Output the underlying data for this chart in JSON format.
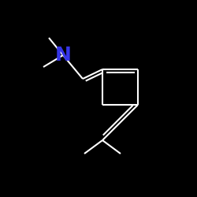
{
  "background_color": "#000000",
  "bond_color": "#ffffff",
  "N_color": "#3636e8",
  "N_label": "N",
  "N_fontsize": 18,
  "N_fontweight": "bold",
  "figsize": [
    2.5,
    2.5
  ],
  "dpi": 100
}
